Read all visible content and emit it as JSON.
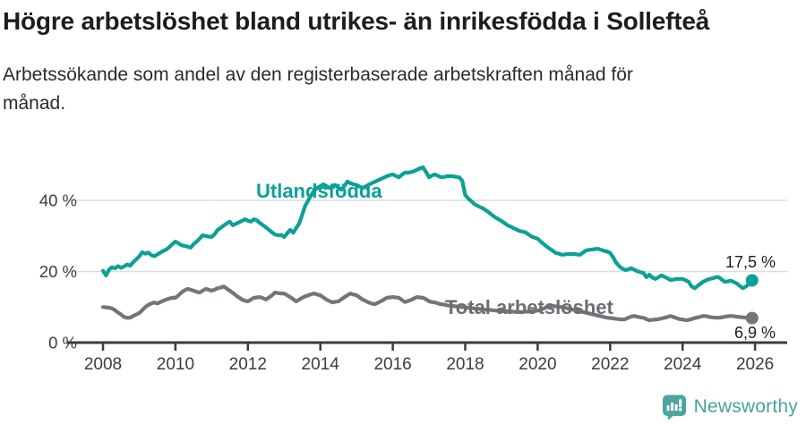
{
  "chart_data": {
    "type": "line",
    "title": "Högre arbetslöshet bland utrikes- än inrikesfödda i Sollefteå",
    "subtitle": "Arbetssökande som andel av den registerbaserade arbetskraften månad för månad.",
    "x_unit": "month",
    "x_start_year": 2008,
    "xlim": [
      2007.0,
      2026.9
    ],
    "ylim": [
      0,
      52
    ],
    "grid": "horizontal",
    "legend_position": "inline-labels",
    "x_ticks": [
      {
        "value": 2008,
        "label": "2008"
      },
      {
        "value": 2010,
        "label": "2010"
      },
      {
        "value": 2012,
        "label": "2012"
      },
      {
        "value": 2014,
        "label": "2014"
      },
      {
        "value": 2016,
        "label": "2016"
      },
      {
        "value": 2018,
        "label": "2018"
      },
      {
        "value": 2020,
        "label": "2020"
      },
      {
        "value": 2022,
        "label": "2022"
      },
      {
        "value": 2024,
        "label": "2024"
      },
      {
        "value": 2026,
        "label": "2026"
      }
    ],
    "y_ticks": [
      {
        "value": 0,
        "label": "0 %"
      },
      {
        "value": 20,
        "label": "20 %"
      },
      {
        "value": 40,
        "label": "40 %"
      }
    ],
    "series": [
      {
        "name": "Utlandsfödda",
        "color": "#0ba197",
        "end_label": "17,5 %",
        "end_value": 17.5,
        "values": [
          20.2,
          18.9,
          20.5,
          21.2,
          20.9,
          21.5,
          21.0,
          21.4,
          22.0,
          21.6,
          22.6,
          23.4,
          24.2,
          25.4,
          25.0,
          25.3,
          24.6,
          24.3,
          24.8,
          25.3,
          25.8,
          26.2,
          26.9,
          27.7,
          28.4,
          27.9,
          27.4,
          27.2,
          27.0,
          26.7,
          27.7,
          28.4,
          29.2,
          30.2,
          30.0,
          29.8,
          29.7,
          30.5,
          31.7,
          32.3,
          32.9,
          33.5,
          34.0,
          33.0,
          33.4,
          33.8,
          34.2,
          34.7,
          34.3,
          34.0,
          34.7,
          34.4,
          33.6,
          33.0,
          32.4,
          31.7,
          31.0,
          30.4,
          30.2,
          30.3,
          29.7,
          30.7,
          31.7,
          30.9,
          32.2,
          33.5,
          36.0,
          38.5,
          40.0,
          41.5,
          42.8,
          43.5,
          44.0,
          44.5,
          44.0,
          43.5,
          43.9,
          44.3,
          43.6,
          43.0,
          44.1,
          45.3,
          44.8,
          44.5,
          44.3,
          43.9,
          43.5,
          43.9,
          44.4,
          44.8,
          45.2,
          45.6,
          46.0,
          46.4,
          46.8,
          47.1,
          47.3,
          46.9,
          46.5,
          47.2,
          47.8,
          47.8,
          47.9,
          48.2,
          48.6,
          49.0,
          49.3,
          48.0,
          46.5,
          47.0,
          47.3,
          46.9,
          46.5,
          46.6,
          46.8,
          46.8,
          46.8,
          46.6,
          46.5,
          45.5,
          41.5,
          40.5,
          39.8,
          39.0,
          38.5,
          38.1,
          37.7,
          37.1,
          36.5,
          35.8,
          35.2,
          34.7,
          34.2,
          33.6,
          33.0,
          32.6,
          32.2,
          31.8,
          31.4,
          31.2,
          31.0,
          30.4,
          29.8,
          29.5,
          29.2,
          28.4,
          27.7,
          27.0,
          26.4,
          25.8,
          25.2,
          25.0,
          24.7,
          24.8,
          24.9,
          24.9,
          24.9,
          24.8,
          24.7,
          25.3,
          25.9,
          26.1,
          26.2,
          26.3,
          26.4,
          26.1,
          25.8,
          25.6,
          25.2,
          24.0,
          22.5,
          21.5,
          20.8,
          20.4,
          20.6,
          20.9,
          20.5,
          20.1,
          19.8,
          19.6,
          18.4,
          19.1,
          18.3,
          17.9,
          18.4,
          18.9,
          18.5,
          18.1,
          17.6,
          17.7,
          17.9,
          17.9,
          17.9,
          17.5,
          17.1,
          15.8,
          15.3,
          16.0,
          16.6,
          17.2,
          17.6,
          17.9,
          18.1,
          18.4,
          18.4,
          17.7,
          17.1,
          17.2,
          17.4,
          17.0,
          16.6,
          15.9,
          15.3,
          15.8,
          16.5,
          17.5
        ]
      },
      {
        "name": "Total arbetslöshet",
        "color": "#74747b",
        "end_label": "6,9 %",
        "end_value": 6.9,
        "values": [
          10.0,
          9.9,
          9.8,
          9.6,
          9.1,
          8.4,
          7.9,
          7.2,
          7.0,
          7.0,
          7.5,
          7.9,
          8.3,
          9.1,
          10.0,
          10.6,
          11.0,
          11.3,
          11.0,
          11.4,
          11.8,
          12.1,
          12.4,
          12.6,
          12.6,
          13.3,
          14.1,
          14.7,
          15.1,
          14.9,
          14.6,
          14.3,
          14.1,
          14.6,
          15.1,
          14.9,
          14.6,
          14.9,
          15.3,
          15.5,
          15.8,
          15.2,
          14.6,
          14.0,
          13.3,
          12.7,
          12.1,
          11.8,
          11.6,
          12.1,
          12.6,
          12.7,
          12.8,
          12.5,
          12.1,
          12.7,
          13.3,
          14.1,
          13.9,
          13.8,
          13.8,
          13.3,
          12.8,
          12.2,
          11.6,
          12.1,
          12.6,
          13.0,
          13.3,
          13.6,
          13.8,
          13.5,
          13.3,
          12.7,
          12.1,
          11.7,
          11.3,
          11.5,
          11.6,
          12.2,
          12.8,
          13.3,
          13.8,
          13.5,
          13.3,
          12.7,
          12.1,
          11.7,
          11.3,
          11.0,
          10.8,
          11.2,
          11.6,
          12.1,
          12.6,
          12.7,
          12.8,
          12.7,
          12.6,
          12.0,
          11.4,
          11.7,
          12.0,
          12.4,
          12.8,
          12.7,
          12.6,
          12.2,
          11.6,
          11.4,
          11.3,
          11.0,
          10.8,
          10.7,
          10.5,
          10.4,
          10.3,
          10.2,
          10.1,
          10.0,
          9.9,
          9.8,
          9.7,
          9.6,
          9.5,
          9.4,
          9.3,
          9.2,
          9.2,
          9.1,
          9.0,
          9.0,
          8.9,
          8.8,
          8.8,
          8.7,
          8.7,
          8.6,
          8.6,
          8.6,
          8.7,
          8.7,
          8.8,
          8.9,
          9.0,
          9.2,
          9.6,
          10.0,
          10.2,
          10.3,
          10.2,
          10.1,
          10.0,
          9.8,
          9.6,
          9.4,
          9.2,
          9.0,
          8.8,
          8.6,
          8.4,
          8.2,
          8.0,
          7.8,
          7.6,
          7.4,
          7.2,
          7.0,
          6.9,
          6.8,
          6.7,
          6.6,
          6.5,
          6.6,
          7.0,
          7.3,
          7.5,
          7.3,
          7.1,
          7.0,
          6.6,
          6.3,
          6.4,
          6.5,
          6.6,
          6.8,
          7.0,
          7.2,
          7.5,
          7.2,
          6.9,
          6.6,
          6.5,
          6.3,
          6.4,
          6.6,
          6.9,
          7.1,
          7.3,
          7.5,
          7.4,
          7.2,
          7.1,
          7.0,
          7.0,
          7.1,
          7.3,
          7.4,
          7.5,
          7.4,
          7.3,
          7.2,
          7.1,
          7.0,
          6.9,
          6.9
        ]
      }
    ],
    "colors": {
      "axis": "#3c3c3c",
      "gridline": "#dcdcdc",
      "tick_text": "#3d3d3d",
      "end_label_text": "#1d1d1d"
    }
  },
  "footer": {
    "brand": "Newsworthy",
    "logo_icon": "bar-chart-speech-bubble-icon",
    "brand_color": "#47a39d"
  }
}
